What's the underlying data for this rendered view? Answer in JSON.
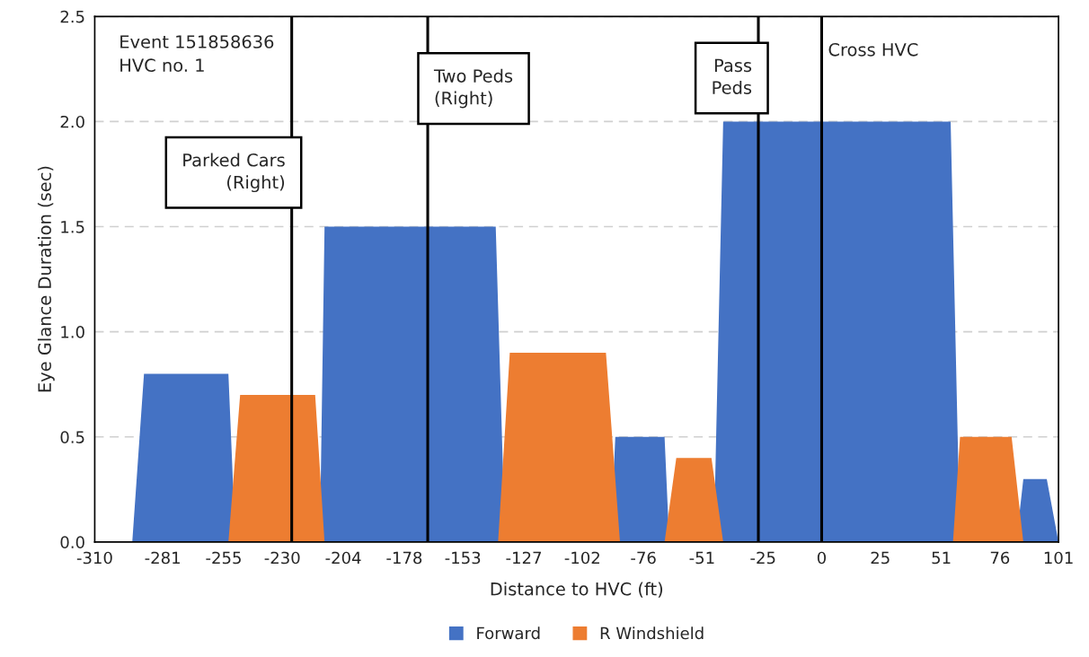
{
  "chart_data": {
    "type": "area",
    "xlabel": "Distance to HVC (ft)",
    "ylabel": "Eye Glance Duration (sec)",
    "series": [
      {
        "name": "Forward",
        "color": "#4472c4",
        "x": [
          -294,
          -289,
          -253,
          -250,
          -214,
          -212,
          -139,
          -135,
          -90,
          -88,
          -67,
          -65,
          -46,
          -42,
          55,
          59,
          83,
          86,
          96,
          101
        ],
        "values": [
          0,
          0.8,
          0.8,
          0,
          0,
          1.5,
          1.5,
          0,
          0,
          0.5,
          0.5,
          0,
          0,
          2.0,
          2.0,
          0,
          0,
          0.3,
          0.3,
          0
        ]
      },
      {
        "name": "R Windshield",
        "color": "#ed7d31",
        "x": [
          -253,
          -248,
          -216,
          -212,
          -138,
          -133,
          -92,
          -86,
          -67,
          -62,
          -47,
          -42,
          56,
          59,
          81,
          86
        ],
        "values": [
          0,
          0.7,
          0.7,
          0,
          0,
          0.9,
          0.9,
          0,
          0,
          0.4,
          0.4,
          0,
          0,
          0.5,
          0.5,
          0
        ]
      }
    ],
    "xlim": [
      -310,
      101
    ],
    "xticks": [
      -310,
      -281,
      -255,
      -230,
      -204,
      -178,
      -153,
      -127,
      -102,
      -76,
      -51,
      -25,
      0,
      25,
      51,
      76,
      101
    ],
    "ylim": [
      0,
      2.5
    ],
    "yticks": [
      {
        "value": 0,
        "label": "0.0"
      },
      {
        "value": 0.5,
        "label": "0.5"
      },
      {
        "value": 1,
        "label": "1.0"
      },
      {
        "value": 1.5,
        "label": "1.5"
      },
      {
        "value": 2,
        "label": "2.0"
      },
      {
        "value": 2.5,
        "label": "2.5"
      }
    ],
    "ref_lines": [
      {
        "axis": "x",
        "value": -226,
        "label": "Parked Cars\n(Right)",
        "color": "#000000"
      },
      {
        "axis": "x",
        "value": -168,
        "label": "Two Peds\n(Right)",
        "color": "#000000"
      },
      {
        "axis": "x",
        "value": -27,
        "label": "Pass\nPeds",
        "color": "#000000"
      },
      {
        "axis": "x",
        "value": 0,
        "label": "Cross HVC",
        "color": "#000000"
      }
    ],
    "annotations": [
      "Event 151858636\nHVC no. 1"
    ],
    "grid": "y",
    "legend": "bottom"
  }
}
